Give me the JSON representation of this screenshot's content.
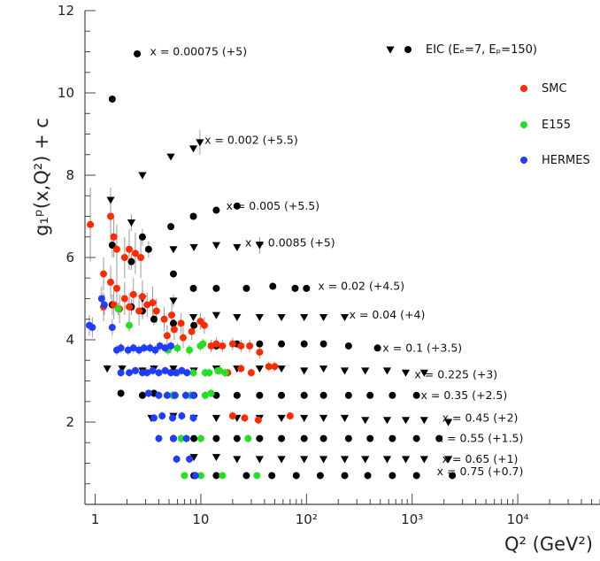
{
  "chart_data": {
    "type": "scatter",
    "title": "",
    "xlabel": "Q² (GeV²)",
    "ylabel": "g₁ᵖ(x,Q²) + c",
    "x_scale": "log",
    "xlim": [
      0.8,
      60000
    ],
    "ylim": [
      0,
      12
    ],
    "y_ticks": [
      "2",
      "4",
      "6",
      "8",
      "10",
      "12"
    ],
    "x_ticks": [
      {
        "value": 1,
        "label": "1"
      },
      {
        "value": 10,
        "label": "10"
      },
      {
        "value": 100,
        "label": "10²"
      },
      {
        "value": 1000,
        "label": "10³"
      },
      {
        "value": 10000,
        "label": "10⁴"
      }
    ],
    "grid": false,
    "legend": [
      {
        "label": "EIC (Eₑ=7, Eₚ=150)",
        "color": "#000000",
        "symbols": [
          "triangle-down",
          "circle"
        ]
      },
      {
        "label": "SMC",
        "color": "#ff2a00",
        "symbols": [
          "circle"
        ]
      },
      {
        "label": "E155",
        "color": "#22e022",
        "symbols": [
          "circle"
        ]
      },
      {
        "label": "HERMES",
        "color": "#1f3cff",
        "symbols": [
          "circle"
        ]
      }
    ],
    "bin_labels": [
      {
        "text": "x = 0.00075 (+5)",
        "q2": 9.5,
        "y": 11.0
      },
      {
        "text": "x = 0.002 (+5.5)",
        "q2": 30,
        "y": 8.85
      },
      {
        "text": "x = 0.005 (+5.5)",
        "q2": 48,
        "y": 7.25
      },
      {
        "text": "x = 0.0085 (+5)",
        "q2": 70,
        "y": 6.35
      },
      {
        "text": "x = 0.02 (+4.5)",
        "q2": 330,
        "y": 5.3
      },
      {
        "text": "x = 0.04 (+4)",
        "q2": 580,
        "y": 4.6
      },
      {
        "text": "x = 0.1 (+3.5)",
        "q2": 1250,
        "y": 3.8
      },
      {
        "text": "x = 0.225 (+3)",
        "q2": 2600,
        "y": 3.15
      },
      {
        "text": "x = 0.35 (+2.5)",
        "q2": 3100,
        "y": 2.65
      },
      {
        "text": "x = 0.45 (+2)",
        "q2": 4400,
        "y": 2.1
      },
      {
        "text": "x = 0.55 (+1.5)",
        "q2": 4400,
        "y": 1.6
      },
      {
        "text": "x = 0.65 (+1)",
        "q2": 4400,
        "y": 1.1
      },
      {
        "text": "x = 0.75 (+0.7)",
        "q2": 4400,
        "y": 0.8
      }
    ],
    "series": [
      {
        "name": "EIC (Eₑ=7, Eₚ=150)",
        "color": "#000000",
        "bins": [
          {
            "marker": "circle",
            "q2": [
              1.45,
              2.5
            ],
            "y": [
              9.85,
              10.95
            ],
            "err": [
              0,
              0
            ]
          },
          {
            "marker": "triangle-down",
            "q2": [
              2.8,
              5.2,
              8.5,
              9.8
            ],
            "y": [
              8.0,
              8.45,
              8.65,
              8.8
            ],
            "err": [
              0,
              0,
              0,
              0.3
            ]
          },
          {
            "marker": "circle",
            "q2": [
              5.2,
              8.5,
              14,
              22
            ],
            "y": [
              6.75,
              7.0,
              7.15,
              7.25
            ],
            "err": [
              0,
              0,
              0,
              0
            ]
          },
          {
            "marker": "triangle-down",
            "q2": [
              1.4,
              2.2,
              5.5,
              8.6,
              14,
              22,
              36
            ],
            "y": [
              7.4,
              6.85,
              6.2,
              6.25,
              6.3,
              6.25,
              6.3
            ],
            "err": [
              0.3,
              0.2,
              0,
              0,
              0,
              0,
              0.2
            ]
          },
          {
            "marker": "circle",
            "q2": [
              1.45,
              2.2,
              2.8,
              3.2,
              5.5,
              8.5,
              14,
              27,
              48,
              78,
              100
            ],
            "y": [
              6.3,
              5.9,
              6.5,
              6.2,
              5.6,
              5.25,
              5.25,
              5.25,
              5.3,
              5.25,
              5.25
            ],
            "err": [
              0.3,
              0.2,
              0.2,
              0.2,
              0,
              0,
              0,
              0,
              0,
              0,
              0
            ]
          },
          {
            "marker": "triangle-down",
            "q2": [
              2.8,
              5.5,
              8.5,
              14,
              22,
              36,
              58,
              95,
              145,
              230
            ],
            "y": [
              5.0,
              4.95,
              4.55,
              4.6,
              4.55,
              4.55,
              4.55,
              4.55,
              4.55,
              4.55
            ],
            "err": [
              0.25,
              0.15,
              0,
              0,
              0,
              0,
              0,
              0,
              0,
              0
            ]
          },
          {
            "marker": "circle",
            "q2": [
              1.45,
              2.2,
              2.8,
              3.6,
              5.5,
              8.6,
              14,
              22,
              36,
              58,
              95,
              145,
              250,
              470
            ],
            "y": [
              4.85,
              4.8,
              4.7,
              4.5,
              4.4,
              4.35,
              3.85,
              3.9,
              3.9,
              3.9,
              3.9,
              3.9,
              3.85,
              3.8
            ],
            "err": [
              0.25,
              0.2,
              0.2,
              0.15,
              0.1,
              0,
              0,
              0,
              0,
              0,
              0,
              0,
              0,
              0
            ]
          },
          {
            "marker": "triangle-down",
            "q2": [
              1.3,
              1.8,
              2.8,
              3.6,
              5.5,
              8.6,
              14,
              22,
              36,
              58,
              95,
              145,
              230,
              360,
              580,
              870,
              1300
            ],
            "y": [
              3.3,
              3.3,
              3.25,
              3.3,
              3.3,
              3.25,
              3.3,
              3.3,
              3.3,
              3.3,
              3.25,
              3.3,
              3.25,
              3.25,
              3.25,
              3.2,
              3.2
            ],
            "err": [
              0.1,
              0.1,
              0.1,
              0.1,
              0,
              0,
              0,
              0,
              0,
              0,
              0,
              0,
              0,
              0,
              0,
              0,
              0
            ]
          },
          {
            "marker": "circle",
            "q2": [
              1.75,
              2.8,
              3.6,
              5.5,
              8.6,
              14,
              22,
              36,
              58,
              95,
              145,
              250,
              400,
              650,
              1100
            ],
            "y": [
              2.7,
              2.65,
              2.7,
              2.65,
              2.65,
              2.65,
              2.65,
              2.65,
              2.65,
              2.65,
              2.65,
              2.65,
              2.65,
              2.65,
              2.65
            ],
            "err": [
              0.1,
              0.1,
              0.1,
              0,
              0,
              0,
              0,
              0,
              0,
              0,
              0,
              0,
              0,
              0,
              0
            ]
          },
          {
            "marker": "triangle-down",
            "q2": [
              3.4,
              5.5,
              8.6,
              14,
              22,
              36,
              58,
              95,
              145,
              230,
              360,
              580,
              870,
              1300,
              2200
            ],
            "y": [
              2.1,
              2.15,
              2.1,
              2.1,
              2.1,
              2.1,
              2.1,
              2.1,
              2.1,
              2.1,
              2.05,
              2.05,
              2.05,
              2.05,
              2.0
            ],
            "err": [
              0,
              0,
              0,
              0,
              0,
              0,
              0,
              0,
              0,
              0,
              0,
              0,
              0,
              0,
              0
            ]
          },
          {
            "marker": "circle",
            "q2": [
              5.5,
              8.6,
              14,
              22,
              36,
              58,
              95,
              145,
              250,
              400,
              650,
              1100,
              1800
            ],
            "y": [
              1.6,
              1.6,
              1.6,
              1.6,
              1.6,
              1.6,
              1.6,
              1.6,
              1.6,
              1.6,
              1.6,
              1.6,
              1.6
            ],
            "err": [
              0,
              0,
              0,
              0,
              0,
              0,
              0,
              0,
              0,
              0,
              0,
              0,
              0
            ]
          },
          {
            "marker": "triangle-down",
            "q2": [
              8.6,
              14,
              22,
              36,
              58,
              95,
              145,
              230,
              360,
              580,
              870,
              1300,
              2200
            ],
            "y": [
              1.15,
              1.15,
              1.1,
              1.1,
              1.1,
              1.1,
              1.1,
              1.1,
              1.1,
              1.1,
              1.1,
              1.1,
              1.1
            ],
            "err": [
              0,
              0,
              0,
              0,
              0,
              0,
              0,
              0,
              0,
              0,
              0,
              0,
              0
            ]
          },
          {
            "marker": "circle",
            "q2": [
              8.6,
              14,
              27,
              47,
              80,
              135,
              230,
              380,
              650,
              1100,
              2400
            ],
            "y": [
              0.7,
              0.7,
              0.7,
              0.7,
              0.7,
              0.7,
              0.7,
              0.7,
              0.7,
              0.7,
              0.7
            ],
            "err": [
              0,
              0,
              0,
              0,
              0,
              0,
              0,
              0,
              0,
              0,
              0
            ]
          }
        ]
      },
      {
        "name": "SMC",
        "color": "#ff2a00",
        "q2": [
          0.9,
          1.2,
          1.4,
          1.5,
          1.6,
          1.9,
          2.1,
          2.4,
          2.7,
          1.4,
          1.6,
          1.9,
          2.3,
          2.8,
          3.5,
          1.2,
          1.5,
          1.7,
          2.1,
          2.6,
          3.1,
          3.8,
          4.5,
          5.3,
          6.5,
          4.8,
          5.6,
          6.8,
          8.2,
          9.9,
          10.8,
          12.5,
          14.0,
          16.0,
          20.0,
          24.0,
          29.0,
          36.0,
          44.0,
          50.0,
          18.0,
          24.0,
          30.0,
          20.0,
          26.0,
          35.0,
          70.0
        ],
        "y": [
          6.8,
          5.6,
          7.0,
          6.5,
          6.2,
          6.0,
          6.2,
          6.1,
          6.0,
          5.4,
          5.25,
          5.0,
          5.1,
          5.05,
          4.9,
          4.8,
          4.85,
          4.75,
          4.8,
          4.7,
          4.85,
          4.7,
          4.5,
          4.6,
          4.4,
          4.1,
          4.25,
          4.05,
          4.2,
          4.45,
          4.35,
          3.85,
          3.9,
          3.85,
          3.9,
          3.85,
          3.85,
          3.7,
          3.35,
          3.35,
          3.2,
          3.3,
          3.2,
          2.15,
          2.1,
          2.05,
          2.15
        ],
        "err": [
          0.9,
          0.4,
          0.6,
          0.5,
          0.6,
          0.5,
          0.5,
          0.5,
          0.5,
          0.4,
          0.4,
          0.4,
          0.4,
          0.4,
          0.4,
          0.35,
          0.35,
          0.35,
          0.35,
          0.35,
          0.3,
          0.3,
          0.3,
          0.3,
          0.25,
          0.25,
          0.25,
          0.25,
          0.2,
          0.2,
          0.2,
          0.15,
          0.15,
          0.15,
          0.15,
          0.15,
          0.15,
          0.15,
          0.12,
          0.12,
          0.1,
          0.1,
          0.1,
          0.1,
          0.1,
          0.1,
          0.1
        ]
      },
      {
        "name": "E155",
        "color": "#22e022",
        "q2": [
          1.65,
          2.1,
          4.9,
          6.0,
          7.8,
          9.9,
          10.5,
          12.0,
          14.5,
          17.0,
          6.0,
          8.5,
          11.0,
          15.0,
          17.0,
          5.4,
          8.0,
          11.0,
          12.5,
          6.5,
          10.0,
          28.0,
          7.0,
          10.0,
          16.0,
          34.0
        ],
        "y": [
          4.75,
          4.35,
          3.75,
          3.8,
          3.75,
          3.85,
          3.9,
          3.2,
          3.25,
          3.2,
          3.2,
          3.2,
          3.2,
          3.25,
          3.2,
          2.65,
          2.65,
          2.65,
          2.7,
          1.6,
          1.6,
          1.6,
          0.7,
          0.7,
          0.7,
          0.7
        ],
        "err": [
          0.15,
          0.15,
          0.12,
          0.12,
          0.12,
          0.12,
          0.12,
          0.1,
          0.1,
          0.1,
          0.1,
          0.1,
          0.1,
          0.1,
          0.1,
          0.1,
          0.1,
          0.1,
          0.1,
          0.1,
          0.1,
          0.1,
          0.08,
          0.08,
          0.08,
          0.08
        ]
      },
      {
        "name": "HERMES",
        "color": "#1f3cff",
        "q2": [
          0.88,
          0.94,
          1.15,
          1.22,
          1.45,
          1.6,
          1.75,
          2.05,
          2.3,
          2.6,
          2.9,
          3.3,
          3.7,
          4.1,
          4.6,
          5.2,
          1.75,
          2.1,
          2.4,
          2.8,
          3.1,
          3.5,
          4.0,
          4.6,
          5.2,
          5.8,
          6.6,
          7.4,
          3.2,
          4.0,
          4.8,
          5.7,
          7.2,
          8.5,
          3.6,
          4.3,
          5.4,
          6.6,
          8.5,
          4.0,
          5.5,
          7.3,
          5.9,
          7.8,
          8.9
        ],
        "y": [
          4.35,
          4.3,
          5.0,
          4.85,
          4.3,
          3.75,
          3.8,
          3.75,
          3.8,
          3.75,
          3.8,
          3.8,
          3.75,
          3.85,
          3.8,
          3.85,
          3.2,
          3.2,
          3.25,
          3.2,
          3.2,
          3.25,
          3.2,
          3.25,
          3.2,
          3.2,
          3.25,
          3.2,
          2.7,
          2.65,
          2.65,
          2.65,
          2.65,
          2.65,
          2.1,
          2.15,
          2.1,
          2.15,
          2.1,
          1.6,
          1.6,
          1.6,
          1.1,
          1.1,
          0.7
        ],
        "err": [
          0.25,
          0.25,
          0.3,
          0.25,
          0.2,
          0.12,
          0.12,
          0.12,
          0.12,
          0.12,
          0.12,
          0.12,
          0.12,
          0.12,
          0.12,
          0.12,
          0.1,
          0.1,
          0.1,
          0.1,
          0.1,
          0.1,
          0.1,
          0.1,
          0.1,
          0.1,
          0.1,
          0.1,
          0.1,
          0.1,
          0.1,
          0.1,
          0.1,
          0.1,
          0.1,
          0.1,
          0.1,
          0.1,
          0.1,
          0.1,
          0.1,
          0.1,
          0.1,
          0.1,
          0.1
        ]
      }
    ]
  }
}
